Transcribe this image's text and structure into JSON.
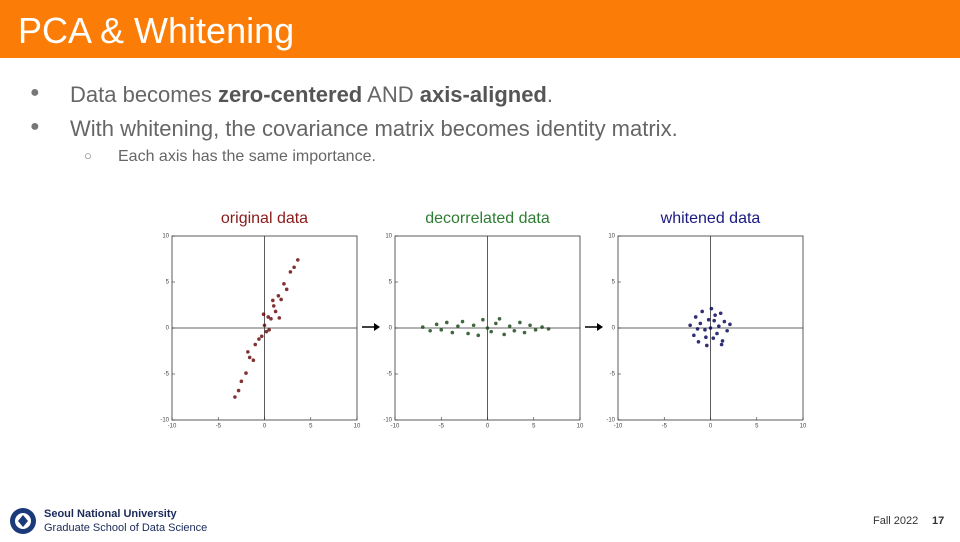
{
  "header": {
    "title": "PCA & Whitening"
  },
  "bullets": [
    {
      "parts": [
        "Data becomes ",
        "zero-centered",
        " AND ",
        "axis-aligned",
        "."
      ]
    },
    {
      "text": "With whitening, the covariance matrix becomes identity matrix.",
      "sub": [
        "Each axis has the same importance."
      ]
    }
  ],
  "footer": {
    "university": "Seoul National University",
    "school": "Graduate School of Data Science",
    "term": "Fall 2022",
    "page": "17"
  },
  "chart_data": [
    {
      "type": "scatter",
      "title": "original data",
      "title_color": "#8b1a1a",
      "color": "#6b0f0f",
      "x": [
        -3.2,
        -2.8,
        -2.5,
        -2,
        -1.8,
        -1.6,
        -1.2,
        -1,
        -0.6,
        -0.3,
        -0.1,
        0,
        0.2,
        0.4,
        0.5,
        0.7,
        0.9,
        1,
        1.2,
        1.5,
        1.6,
        1.8,
        2.1,
        2.4,
        2.8,
        3.2,
        3.6
      ],
      "values": [
        -7.5,
        -6.8,
        -5.8,
        -4.9,
        -2.6,
        -3.2,
        -3.5,
        -1.8,
        -1.2,
        -0.9,
        1.5,
        0.3,
        -0.4,
        1.2,
        -0.2,
        1,
        3,
        2.4,
        1.8,
        3.5,
        1.1,
        3.1,
        4.8,
        4.2,
        6.1,
        6.6,
        7.4
      ],
      "xlim": [
        -10,
        10
      ],
      "ylim": [
        -10,
        10
      ],
      "xticks": [
        -10,
        -5,
        0,
        5,
        10
      ],
      "yticks": [
        -10,
        -5,
        0,
        5,
        10
      ]
    },
    {
      "type": "scatter",
      "title": "decorrelated data",
      "title_color": "#2e7d32",
      "color": "#1f4d1f",
      "x": [
        -7,
        -6.2,
        -5.5,
        -5,
        -4.4,
        -3.8,
        -3.2,
        -2.7,
        -2.1,
        -1.5,
        -1,
        -0.5,
        0,
        0.4,
        0.9,
        1.3,
        1.8,
        2.4,
        2.9,
        3.5,
        4,
        4.6,
        5.2,
        5.9,
        6.6
      ],
      "values": [
        0.1,
        -0.3,
        0.4,
        -0.2,
        0.6,
        -0.5,
        0.2,
        0.7,
        -0.6,
        0.3,
        -0.8,
        0.9,
        0,
        -0.4,
        0.5,
        1,
        -0.7,
        0.2,
        -0.3,
        0.6,
        -0.5,
        0.3,
        -0.2,
        0.1,
        -0.1
      ],
      "xlim": [
        -10,
        10
      ],
      "ylim": [
        -10,
        10
      ],
      "xticks": [
        -10,
        -5,
        0,
        5,
        10
      ],
      "yticks": [
        -10,
        -5,
        0,
        5,
        10
      ]
    },
    {
      "type": "scatter",
      "title": "whitened data",
      "title_color": "#1a1a80",
      "color": "#0a0a5a",
      "x": [
        -2.2,
        -1.8,
        -1.6,
        -1.3,
        -1.1,
        -0.9,
        -0.6,
        -0.4,
        -0.2,
        0,
        0.1,
        0.3,
        0.5,
        0.7,
        0.9,
        1.1,
        1.3,
        1.5,
        1.8,
        2.1,
        -0.5,
        0.4,
        -1.4,
        1.2
      ],
      "values": [
        0.3,
        -0.8,
        1.2,
        -1.5,
        0.5,
        1.8,
        -0.2,
        -1.9,
        0.9,
        0,
        2.1,
        -1.1,
        1.4,
        -0.6,
        0.2,
        1.6,
        -1.4,
        0.7,
        -0.3,
        0.4,
        -1,
        0.8,
        -0.1,
        -1.8
      ],
      "xlim": [
        -10,
        10
      ],
      "ylim": [
        -10,
        10
      ],
      "xticks": [
        -10,
        -5,
        0,
        5,
        10
      ],
      "yticks": [
        -10,
        -5,
        0,
        5,
        10
      ]
    }
  ]
}
